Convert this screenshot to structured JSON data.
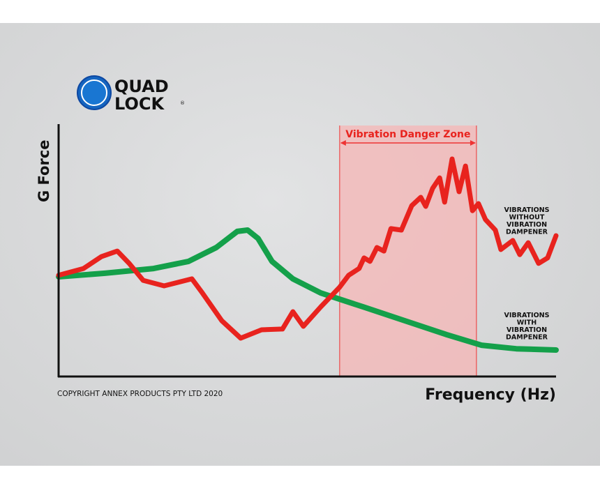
{
  "logo": {
    "text_line1": "QUAD",
    "text_line2": "LOCK",
    "mark": "®",
    "color": "#1565c0"
  },
  "copyright": "COPYRIGHT ANNEX PRODUCTS PTY LTD 2020",
  "chart_data": {
    "type": "line",
    "title": "",
    "xlabel": "Frequency (Hz)",
    "ylabel": "G Force",
    "xlim": [
      0,
      100
    ],
    "ylim": [
      0,
      100
    ],
    "grid": false,
    "danger_zone": {
      "label": "Vibration Danger Zone",
      "x_range": [
        56.5,
        84.0
      ],
      "color": "#f5b5b5",
      "edge_color": "#e33"
    },
    "series": [
      {
        "name": "VIBRATIONS WITHOUT VIBRATION DAMPENER",
        "label_lines": [
          "VIBRATIONS",
          "WITHOUT",
          "VIBRATION",
          "DAMPENER"
        ],
        "color": "#e8231e",
        "x": [
          0,
          5.0,
          8.6,
          11.8,
          14.2,
          17.0,
          21.2,
          26.8,
          28.9,
          32.8,
          36.6,
          40.8,
          45.0,
          47.1,
          49.2,
          52.7,
          56.5,
          58.3,
          60.4,
          61.4,
          62.6,
          64.0,
          65.4,
          66.8,
          68.9,
          71.0,
          72.8,
          73.8,
          75.2,
          76.6,
          77.6,
          79.1,
          80.5,
          81.8,
          83.2,
          84.4,
          85.8,
          87.8,
          88.9,
          91.3,
          92.7,
          94.4,
          96.5,
          98.3,
          100
        ],
        "y": [
          40.1,
          42.8,
          47.5,
          49.7,
          44.8,
          38.1,
          35.9,
          38.7,
          33.1,
          22.1,
          15.2,
          18.5,
          18.8,
          25.7,
          19.9,
          27.6,
          35.4,
          40.1,
          42.8,
          47.0,
          45.6,
          51.1,
          49.7,
          58.6,
          58.0,
          67.7,
          71.0,
          67.4,
          74.6,
          78.7,
          69.1,
          86.2,
          73.2,
          83.4,
          65.7,
          68.5,
          62.2,
          58.0,
          50.3,
          53.9,
          48.3,
          53.0,
          44.8,
          47.0,
          55.8
        ]
      },
      {
        "name": "VIBRATIONS WITH VIBRATION DAMPENER",
        "label_lines": [
          "VIBRATIONS",
          "WITH",
          "VIBRATION",
          "DAMPENER"
        ],
        "color": "#14a04a",
        "x": [
          0,
          9.3,
          19.1,
          26.1,
          31.7,
          35.9,
          38.0,
          40.1,
          42.9,
          47.1,
          52.7,
          61.2,
          69.6,
          78.0,
          85.0,
          92.0,
          100
        ],
        "y": [
          39.5,
          40.9,
          42.8,
          45.6,
          51.1,
          57.5,
          58.0,
          54.7,
          45.6,
          38.7,
          33.1,
          27.6,
          22.1,
          16.6,
          12.4,
          11.0,
          10.5
        ]
      }
    ]
  }
}
